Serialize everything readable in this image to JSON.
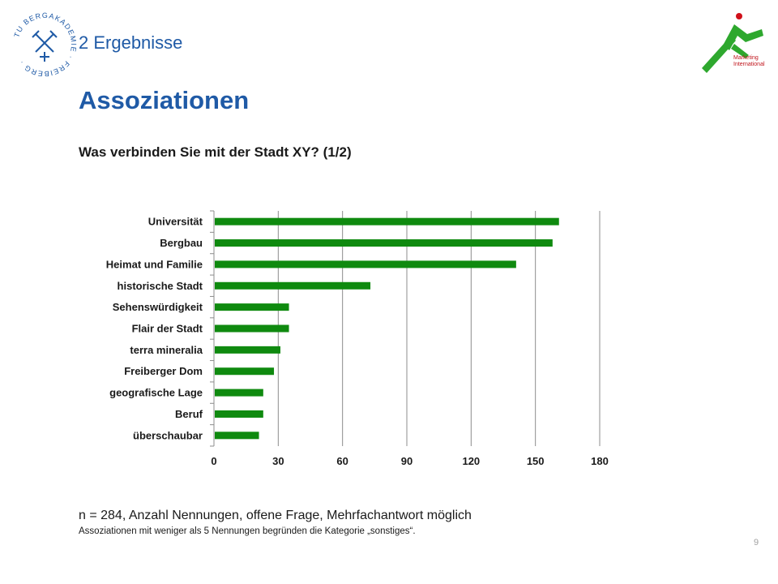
{
  "header": {
    "section_label": "2 Ergebnisse",
    "title": "Assoziationen",
    "university_seal_text": "TU BERGAKADEMIE · FREIBERG ·",
    "logo_text_line1": "Marketing",
    "logo_text_line2": "International"
  },
  "question": "Was verbinden Sie mit der Stadt XY? (1/2)",
  "colors": {
    "accent_blue": "#1f5aa6",
    "bar_green": "#0f8a0f",
    "logo_green": "#2ea82e",
    "logo_red": "#d0101a"
  },
  "chart_data": {
    "type": "bar",
    "orientation": "horizontal",
    "categories": [
      "Universität",
      "Bergbau",
      "Heimat und Familie",
      "historische Stadt",
      "Sehenswürdigkeit",
      "Flair der Stadt",
      "terra mineralia",
      "Freiberger Dom",
      "geografische Lage",
      "Beruf",
      "überschaubar"
    ],
    "values": [
      161,
      158,
      141,
      73,
      35,
      35,
      31,
      28,
      23,
      23,
      21
    ],
    "xticks": [
      "0",
      "30",
      "60",
      "90",
      "120",
      "150",
      "180"
    ],
    "xlim": [
      0,
      180
    ],
    "grid": true,
    "legend": false
  },
  "footnote": {
    "main": "n = 284, Anzahl Nennungen, offene Frage, Mehrfachantwort möglich",
    "sub": "Assoziationen mit weniger als 5 Nennungen begründen die Kategorie „sonstiges“."
  },
  "page_number": "9"
}
